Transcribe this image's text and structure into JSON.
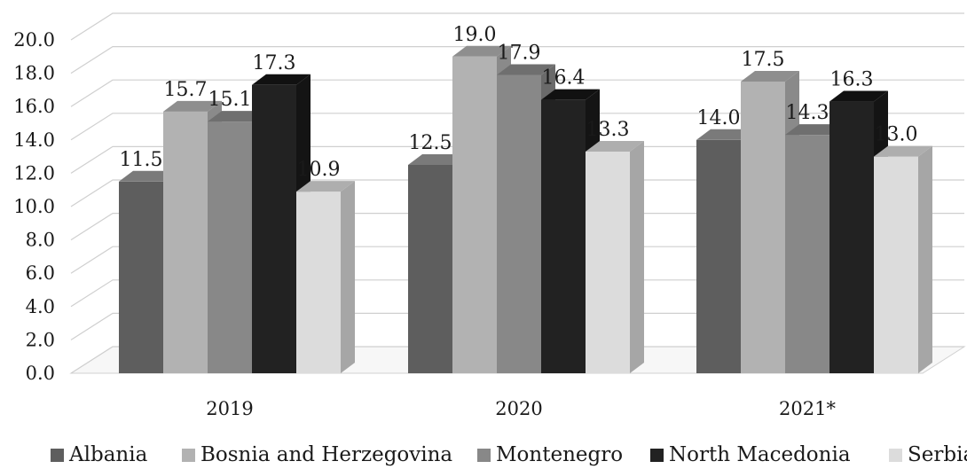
{
  "chart_data": {
    "type": "bar",
    "title": "",
    "xlabel": "",
    "ylabel": "",
    "categories": [
      "2019",
      "2020",
      "2021*"
    ],
    "series": [
      {
        "name": "Albania",
        "values": [
          11.5,
          12.5,
          14.0
        ]
      },
      {
        "name": "Bosnia and Herzegovina",
        "values": [
          15.7,
          19.0,
          17.5
        ]
      },
      {
        "name": "Montenegro",
        "values": [
          15.1,
          17.9,
          14.3
        ]
      },
      {
        "name": "North Macedonia",
        "values": [
          17.3,
          16.4,
          16.3
        ]
      },
      {
        "name": "Serbia",
        "values": [
          10.9,
          13.3,
          13.0
        ]
      }
    ],
    "ylim": [
      0,
      20
    ],
    "yticks": [
      "0.0",
      "2.0",
      "4.0",
      "6.0",
      "8.0",
      "10.0",
      "12.0",
      "14.0",
      "16.0",
      "18.0",
      "20.0"
    ],
    "style": "3d-clustered-column",
    "grid": true,
    "legend_position": "bottom",
    "colors": {
      "Albania": {
        "front": "#5e5e5e",
        "top": "#7a7a7a",
        "side": "#3a3a3a"
      },
      "Bosnia and Herzegovina": {
        "front": "#b2b2b2",
        "top": "#8e8e8e",
        "side": "#8a8a8a"
      },
      "Montenegro": {
        "front": "#888888",
        "top": "#6f6f6f",
        "side": "#6a6a6a"
      },
      "North Macedonia": {
        "front": "#222222",
        "top": "#111111",
        "side": "#141414"
      },
      "Serbia": {
        "front": "#dcdcdc",
        "top": "#aeaeae",
        "side": "#a6a6a6"
      }
    }
  }
}
